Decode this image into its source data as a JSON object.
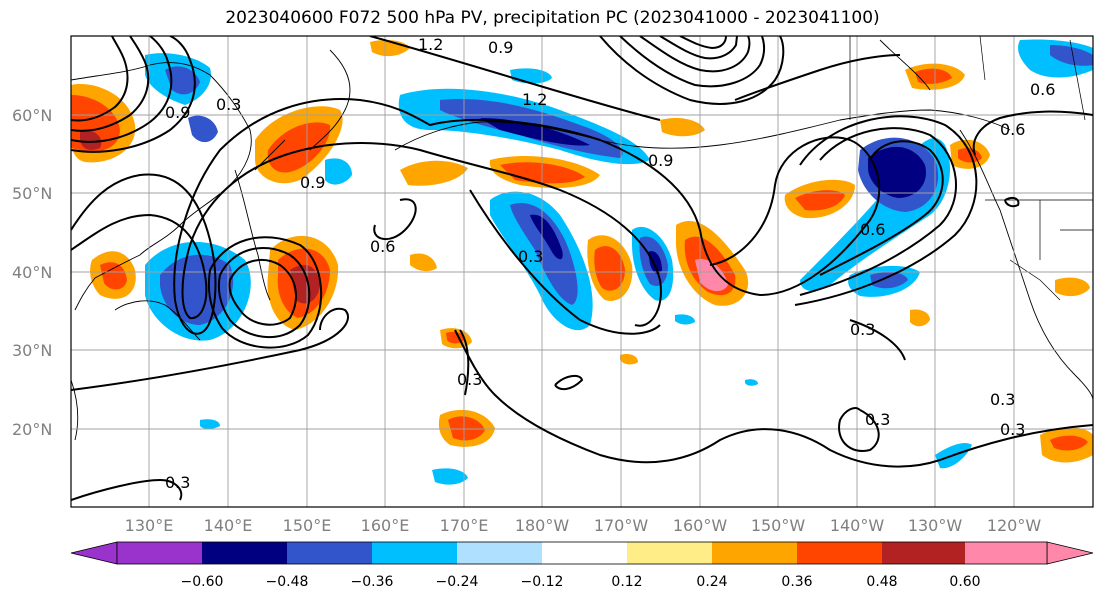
{
  "title": "2023040600 F072 500 hPa PV, precipitation PC (2023041000 - 2023041100)",
  "lat_labels": [
    "60°N",
    "50°N",
    "40°N",
    "30°N",
    "20°N"
  ],
  "lon_labels": [
    "130°E",
    "140°E",
    "150°E",
    "160°E",
    "170°E",
    "180°W",
    "170°W",
    "160°W",
    "150°W",
    "140°W",
    "130°W",
    "120°W"
  ],
  "contour_labels": [
    "1.2",
    "0.9",
    "0.3",
    "0.6",
    "0.9",
    "1.2",
    "0.3",
    "0.9",
    "0.6",
    "0.3",
    "0.3",
    "0.3",
    "0.3",
    "0.3",
    "0.6",
    "0.9",
    "0.6",
    "0.3"
  ],
  "colorbar": {
    "ticks": [
      "−0.60",
      "−0.48",
      "−0.36",
      "−0.24",
      "−0.12",
      "0.12",
      "0.24",
      "0.36",
      "0.48",
      "0.60"
    ],
    "colors": [
      "#9933cc",
      "#000080",
      "#3355cc",
      "#00bfff",
      "#b0e0ff",
      "#ffffff",
      "#ffee88",
      "#ffa500",
      "#ff4500",
      "#b22222",
      "#ff88aa"
    ]
  }
}
